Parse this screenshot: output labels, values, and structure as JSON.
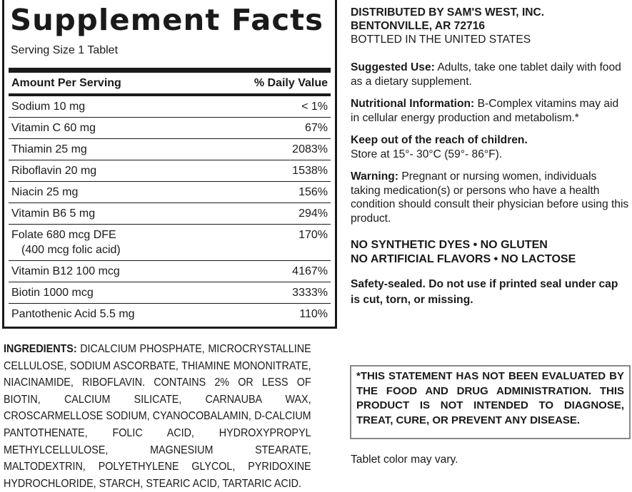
{
  "facts": {
    "title": "Supplement Facts",
    "serving_size": "Serving Size 1 Tablet",
    "header": {
      "amount": "Amount Per Serving",
      "dv": "% Daily Value"
    },
    "rows": [
      {
        "name": "Sodium 10 mg",
        "dv": "< 1%"
      },
      {
        "name": "Vitamin C 60 mg",
        "dv": "67%"
      },
      {
        "name": "Thiamin 25 mg",
        "dv": "2083%"
      },
      {
        "name": "Riboflavin 20 mg",
        "dv": "1538%"
      },
      {
        "name": "Niacin 25 mg",
        "dv": "156%"
      },
      {
        "name": "Vitamin B6 5 mg",
        "dv": "294%"
      },
      {
        "name": "Folate 680 mcg DFE",
        "sub": "(400 mcg folic acid)",
        "dv": "170%"
      },
      {
        "name": "Vitamin B12 100 mcg",
        "dv": "4167%"
      },
      {
        "name": "Biotin 1000 mcg",
        "dv": "3333%"
      },
      {
        "name": "Pantothenic Acid 5.5 mg",
        "dv": "110%"
      }
    ]
  },
  "ingredients": {
    "label": "INGREDIENTS:",
    "text": "DICALCIUM PHOSPHATE, MICROCRYSTALLINE CELLULOSE, SODIUM ASCORBATE, THIAMINE MONONITRATE, NIACINAMIDE, RIBOFLAVIN. CONTAINS 2% OR LESS OF BIOTIN, CALCIUM SILICATE, CARNAUBA WAX, CROSCARMELLOSE SODIUM, CYANOCOBALAMIN, D-CALCIUM PANTOTHENATE, FOLIC ACID, HYDROXYPROPYL METHYLCELLULOSE, MAGNESIUM STEARATE, MALTODEXTRIN, POLYETHYLENE GLYCOL, PYRIDOXINE HYDROCHLORIDE, STARCH, STEARIC ACID, TARTARIC ACID."
  },
  "info": {
    "distributor": "DISTRIBUTED BY SAM'S WEST, INC.",
    "city": "BENTONVILLE, AR 72716",
    "bottled": "BOTTLED IN THE UNITED STATES",
    "use_label": "Suggested Use:",
    "use_text": "Adults, take one tablet daily with food as a dietary supplement.",
    "nutri_label": "Nutritional Information:",
    "nutri_text": "B-Complex vitamins may aid in cellular energy production and metabolism.*",
    "keep": "Keep out of the reach of children.",
    "store": "Store at 15°- 30°C (59°- 86°F).",
    "warn_label": "Warning:",
    "warn_text": "Pregnant or nursing women, individuals taking medication(s) or persons who have a health condition should consult their physician before using this product.",
    "free1": "NO SYNTHETIC DYES • NO GLUTEN",
    "free2": "NO ARTIFICIAL FLAVORS • NO LACTOSE",
    "safety": "Safety-sealed. Do not use if printed seal under cap is cut, torn, or missing.",
    "disclaimer": "*THIS STATEMENT HAS NOT BEEN EVALUATED BY THE FOOD AND DRUG ADMINISTRATION. THIS PRODUCT IS NOT INTENDED TO DIAGNOSE, TREAT, CURE, OR PREVENT ANY DISEASE.",
    "color_note": "Tablet color may vary."
  }
}
